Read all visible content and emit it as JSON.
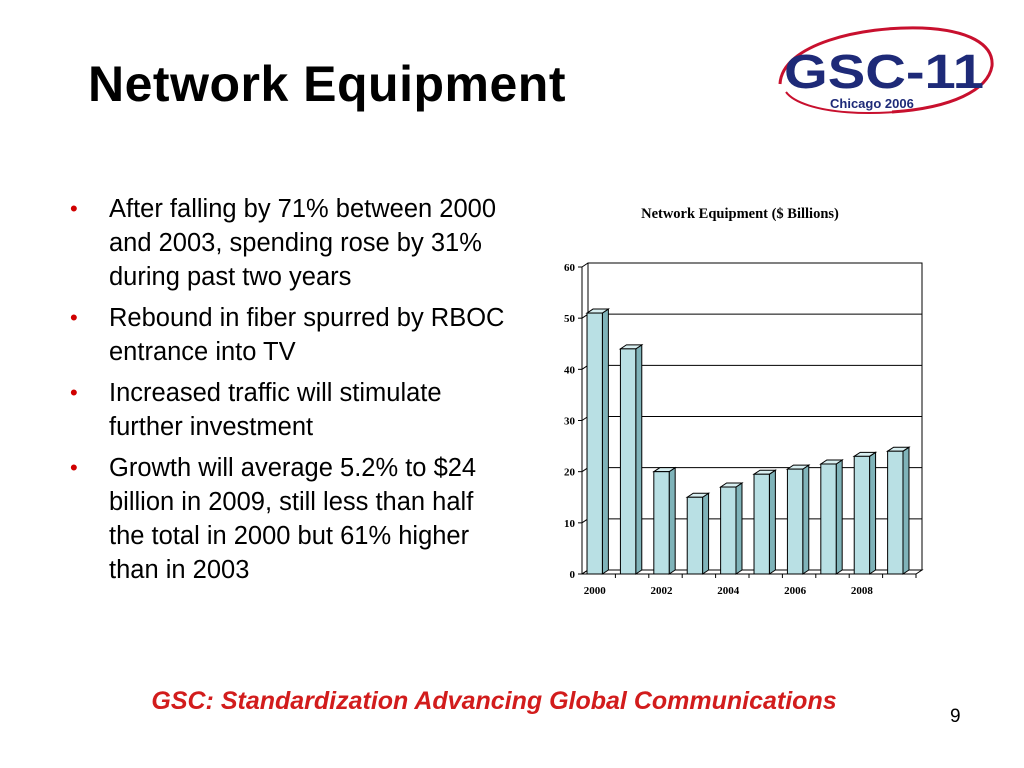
{
  "slide": {
    "title": "Network Equipment",
    "bullets": [
      "After falling by 71% between 2000 and 2003, spending rose by 31% during past two years",
      "Rebound in fiber spurred by RBOC entrance into TV",
      "Increased traffic will stimulate further investment",
      "Growth will average 5.2% to $24 billion in 2009, still less than half the total in 2000 but 61% higher than in 2003"
    ],
    "footer": "GSC: Standardization Advancing Global Communications",
    "page_number": "9"
  },
  "logo": {
    "main_text": "GSC-11",
    "sub_text": "Chicago 2006",
    "colors": {
      "navy": "#1e2a78",
      "red": "#c8102e"
    }
  },
  "colors": {
    "bullet": "#d00000",
    "footer": "#d21c1c",
    "bar_face": "#b9e0e4",
    "bar_top": "#d8eff1",
    "bar_side": "#7fb3b9"
  },
  "chart_data": {
    "type": "bar",
    "title": "Network Equipment ($ Billions)",
    "categories": [
      "2000",
      "2001",
      "2002",
      "2003",
      "2004",
      "2005",
      "2006",
      "2007",
      "2008",
      "2009"
    ],
    "x_tick_labels": [
      "2000",
      "2002",
      "2004",
      "2006",
      "2008"
    ],
    "values": [
      51,
      44,
      20,
      15,
      17,
      19.5,
      20.5,
      21.5,
      23,
      24
    ],
    "ylim": [
      0,
      60
    ],
    "yticks": [
      0,
      10,
      20,
      30,
      40,
      50,
      60
    ],
    "grid": true,
    "legend": "none"
  }
}
